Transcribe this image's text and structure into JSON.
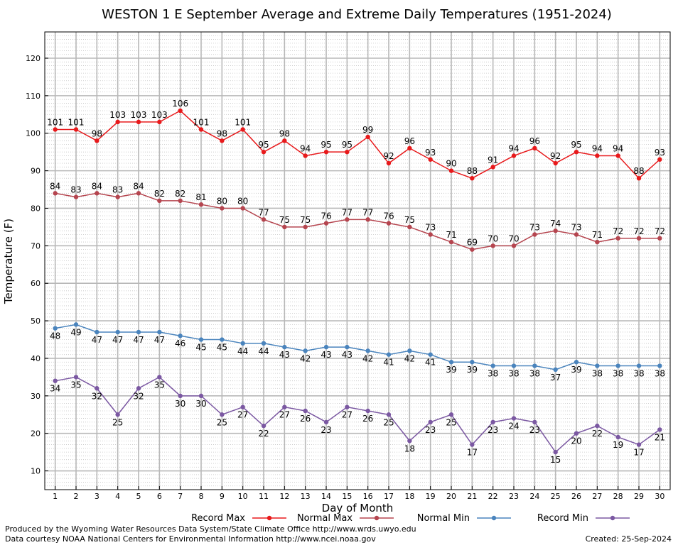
{
  "chart_data": {
    "type": "line",
    "title": "WESTON 1 E September Average and Extreme Daily Temperatures (1951-2024)",
    "xlabel": "Day of Month",
    "ylabel": "Temperature (F)",
    "xlim": [
      0.5,
      30.5
    ],
    "ylim": [
      5,
      127
    ],
    "x": [
      1,
      2,
      3,
      4,
      5,
      6,
      7,
      8,
      9,
      10,
      11,
      12,
      13,
      14,
      15,
      16,
      17,
      18,
      19,
      20,
      21,
      22,
      23,
      24,
      25,
      26,
      27,
      28,
      29,
      30
    ],
    "yticks": [
      10,
      20,
      30,
      40,
      50,
      60,
      70,
      80,
      90,
      100,
      110,
      120
    ],
    "grid": true,
    "legend_position": "bottom",
    "series": [
      {
        "name": "Record Max",
        "color": "#e8191b",
        "label_pos": "above",
        "values": [
          101,
          101,
          98,
          103,
          103,
          103,
          106,
          101,
          98,
          101,
          95,
          98,
          94,
          95,
          95,
          99,
          92,
          96,
          93,
          90,
          88,
          91,
          94,
          96,
          92,
          95,
          94,
          94,
          88,
          93
        ]
      },
      {
        "name": "Normal Max",
        "color": "#b5454f",
        "label_pos": "above",
        "values": [
          84,
          83,
          84,
          83,
          84,
          82,
          82,
          81,
          80,
          80,
          77,
          75,
          75,
          76,
          77,
          77,
          76,
          75,
          73,
          71,
          69,
          70,
          70,
          73,
          74,
          73,
          71,
          72,
          72,
          72
        ]
      },
      {
        "name": "Normal Min",
        "color": "#4a84bd",
        "label_pos": "below",
        "values": [
          48,
          49,
          47,
          47,
          47,
          47,
          46,
          45,
          45,
          44,
          44,
          43,
          42,
          43,
          43,
          42,
          41,
          42,
          41,
          39,
          39,
          38,
          38,
          38,
          37,
          39,
          38,
          38,
          38,
          38
        ]
      },
      {
        "name": "Record Min",
        "color": "#7b58a2",
        "label_pos": "below",
        "values": [
          34,
          35,
          32,
          25,
          32,
          35,
          30,
          30,
          25,
          27,
          22,
          27,
          26,
          23,
          27,
          26,
          25,
          18,
          23,
          25,
          17,
          23,
          24,
          23,
          15,
          20,
          22,
          19,
          17,
          21
        ]
      }
    ]
  },
  "credits": {
    "produced_by": "Produced by the Wyoming Water Resources Data System/State Climate Office http://www.wrds.uwyo.edu",
    "data_courtesy": "Data courtesy NOAA National Centers for Environmental Information http://www.ncei.noaa.gov",
    "created": "Created:  25-Sep-2024"
  }
}
